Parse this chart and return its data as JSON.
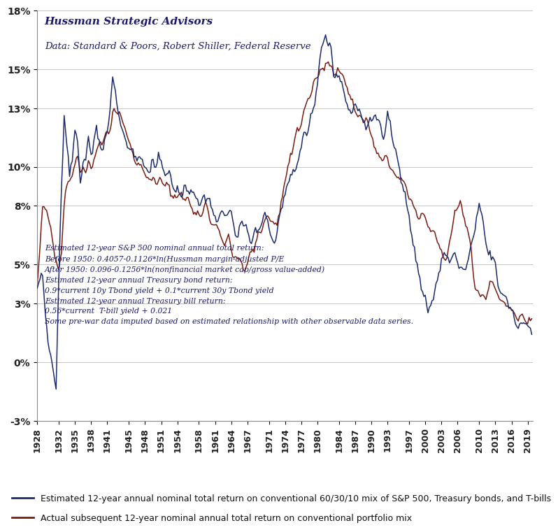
{
  "title": "Hussman Strategic Advisors",
  "subtitle": "Data: Standard & Poors, Robert Shiller, Federal Reserve",
  "annotation": "Estimated 12-year S&P 500 nominal annual total return:\nBefore 1950: 0.4057-0.1126*ln(Hussman margin-adjusted P/E\nAfter 1950: 0.096-0.1256*ln(nonfinancial market cap/gross value-added)\nEstimated 12-year annual Treasury bond return:\n0.9*current 10y Tbond yield + 0.1*current 30y Tbond yield\nEstimated 12-year annual Treasury bill return:\n0.56*current  T-bill yield + 0.021\nSome pre-war data imputed based on estimated relationship with other observable data series.",
  "legend1": "Estimated 12-year annual nominal total return on conventional 60/30/10 mix of S&P 500, Treasury bonds, and T-bills",
  "legend2": "Actual subsequent 12-year nominal annual total return on conventional portfolio mix",
  "estimated_color": "#1c2b6b",
  "actual_color": "#7a1c10",
  "ylim": [
    -0.03,
    0.18
  ],
  "yticks": [
    -0.03,
    0.0,
    0.03,
    0.05,
    0.08,
    0.1,
    0.13,
    0.15,
    0.18
  ],
  "ytick_labels": [
    "-3%",
    "0%",
    "3%",
    "5%",
    "8%",
    "10%",
    "13%",
    "15%",
    "18%"
  ],
  "xstart": 1928,
  "xend": 2020,
  "xticks": [
    1928,
    1932,
    1935,
    1938,
    1941,
    1945,
    1948,
    1951,
    1954,
    1958,
    1961,
    1964,
    1967,
    1971,
    1974,
    1977,
    1980,
    1984,
    1987,
    1990,
    1993,
    1997,
    2000,
    2003,
    2006,
    2010,
    2013,
    2016,
    2019
  ],
  "background_color": "#ffffff",
  "grid_color": "#bbbbbb"
}
